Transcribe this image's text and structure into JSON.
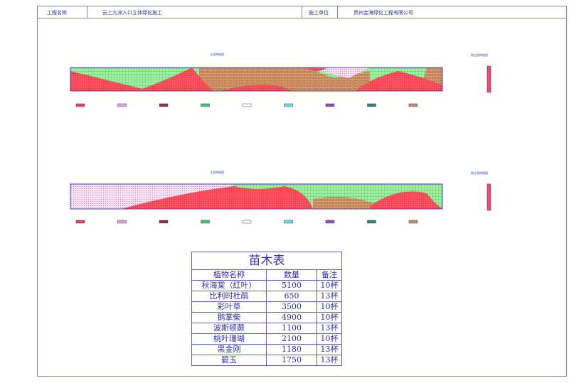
{
  "header": {
    "project_label": "工程名称",
    "project_name": "云上九洲入口立体绿化施工",
    "contractor_label": "施工单位",
    "contractor_name": "贵州金海绿化工程有限公司"
  },
  "drawings": [
    {
      "title": "立面种植图",
      "side_title": "侧立面种植图"
    },
    {
      "title": "立面种植图",
      "side_title": "侧立面种植图"
    }
  ],
  "legend_colors": [
    "#f04050",
    "#e0a0e0",
    "#903050",
    "#50c070",
    "#ffffff",
    "#60e0e0",
    "#9050b0",
    "#308080",
    "#c09060"
  ],
  "table": {
    "title": "苗木表",
    "headers": [
      "植物名称",
      "数量",
      "备注"
    ],
    "rows": [
      [
        "秋海棠（红叶）",
        "5100",
        "10杯"
      ],
      [
        "比利时杜鹃",
        "650",
        "13杯"
      ],
      [
        "彩叶草",
        "3500",
        "10杯"
      ],
      [
        "鹅掌柴",
        "4900",
        "10杯"
      ],
      [
        "波斯顿蕨",
        "1100",
        "13杯"
      ],
      [
        "桃叶珊瑚",
        "2100",
        "10杯"
      ],
      [
        "黑金刚",
        "1180",
        "13杯"
      ],
      [
        "碧玉",
        "1750",
        "13杯"
      ]
    ]
  }
}
